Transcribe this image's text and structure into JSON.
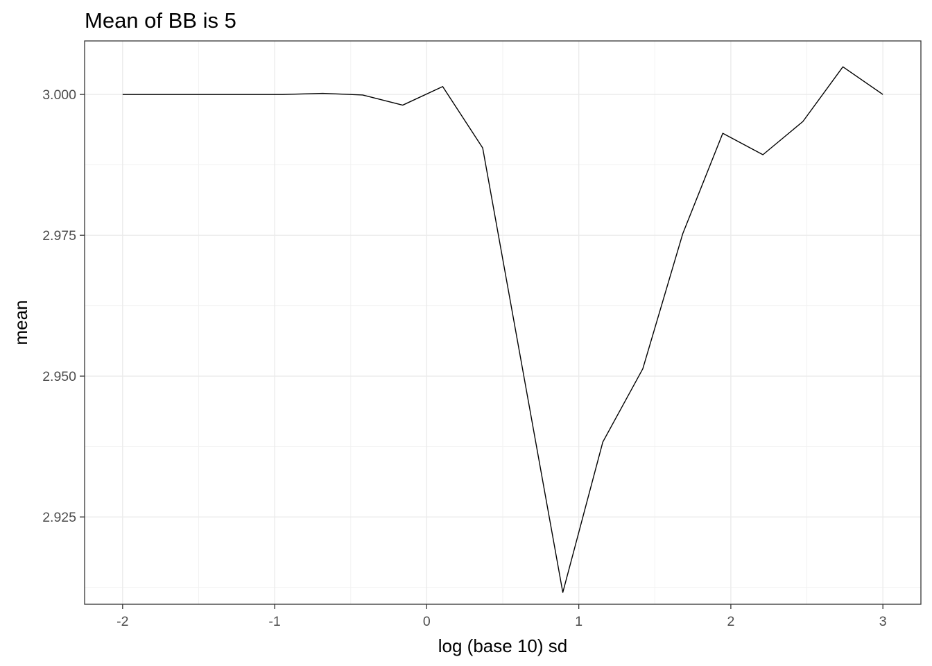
{
  "colors": {
    "background": "#ffffff",
    "panel_border": "#333333",
    "grid_major": "#ebebeb",
    "grid_minor": "#f2f2f2",
    "line": "#000000",
    "tick_text": "#4d4d4d"
  },
  "chart_data": {
    "type": "line",
    "title": "Mean of BB is 5",
    "xlabel": "log (base 10) sd",
    "ylabel": "mean",
    "xlim": [
      -2.25,
      3.25
    ],
    "ylim": [
      2.9095,
      3.0095
    ],
    "x_ticks": [
      -2,
      -1,
      0,
      1,
      2,
      3
    ],
    "x_tick_labels": [
      "-2",
      "-1",
      "0",
      "1",
      "2",
      "3"
    ],
    "x_minor_ticks": [
      -1.5,
      -0.5,
      0.5,
      1.5,
      2.5
    ],
    "y_ticks": [
      2.925,
      2.95,
      2.975,
      3.0
    ],
    "y_tick_labels": [
      "2.925",
      "2.950",
      "2.975",
      "3.000"
    ],
    "y_minor_ticks": [
      2.9125,
      2.9375,
      2.9625,
      2.9875
    ],
    "grid": true,
    "series": [
      {
        "x": [
          -2.0,
          -1.737,
          -1.474,
          -1.211,
          -0.947,
          -0.684,
          -0.421,
          -0.158,
          0.105,
          0.368,
          0.632,
          0.895,
          1.158,
          1.421,
          1.684,
          1.947,
          2.211,
          2.474,
          2.737,
          3.0
        ],
        "values": [
          3.0,
          3.0,
          3.0,
          3.0,
          3.0,
          3.0002,
          2.9999,
          2.9981,
          3.0014,
          2.9905,
          2.951,
          2.9116,
          2.9383,
          2.9513,
          2.9753,
          2.9931,
          2.9893,
          2.9952,
          3.0049,
          3.0
        ]
      }
    ]
  }
}
